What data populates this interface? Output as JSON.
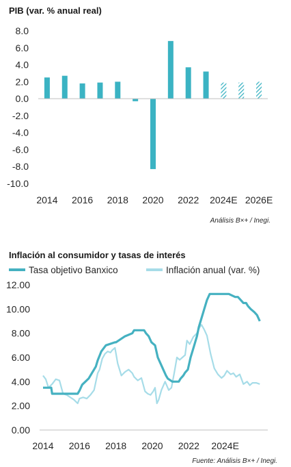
{
  "colors": {
    "bar": "#3BB3C3",
    "rate_line": "#45B1C1",
    "inflation_line": "#A6DCE8",
    "axis": "#BFBFBF",
    "text": "#262626"
  },
  "chart_data": [
    {
      "type": "bar",
      "title": "PIB (var. % anual real)",
      "source": "Análisis B×+ / Inegi.",
      "categories": [
        "2014",
        "2015",
        "2016",
        "2017",
        "2018",
        "2019",
        "2020",
        "2021",
        "2022",
        "2023",
        "2024E",
        "2025E",
        "2026E"
      ],
      "x_tick_labels": [
        "2014",
        "2016",
        "2018",
        "2020",
        "2022",
        "2024E",
        "2026E"
      ],
      "values": [
        2.5,
        2.7,
        1.8,
        1.9,
        2.0,
        -0.3,
        -8.3,
        6.8,
        3.7,
        3.2,
        1.9,
        1.9,
        2.0
      ],
      "hatched": [
        false,
        false,
        false,
        false,
        false,
        false,
        false,
        false,
        false,
        false,
        true,
        true,
        true
      ],
      "ylim": [
        -10,
        8
      ],
      "y_tick_labels": [
        "8.0",
        "6.0",
        "4.0",
        "2.0",
        "0.0",
        "-2.0",
        "-4.0",
        "-6.0",
        "-8.0",
        "-10.0"
      ],
      "y_ticks": [
        8,
        6,
        4,
        2,
        0,
        -2,
        -4,
        -6,
        -8,
        -10
      ],
      "grid": false
    },
    {
      "type": "line",
      "title": "Inflación al consumidor y tasas de interés",
      "source": "Fuente: Análisis B×+ / Inegi.",
      "xlim": [
        2014.0,
        2026.0
      ],
      "x_tick_labels": [
        "2014",
        "2016",
        "2018",
        "2020",
        "2022",
        "2024E"
      ],
      "x_ticks": [
        2014,
        2016,
        2018,
        2020,
        2022,
        2024
      ],
      "ylim": [
        0,
        12
      ],
      "y_tick_labels": [
        "12.00",
        "10.00",
        "8.00",
        "6.00",
        "4.00",
        "2.00",
        "0.00"
      ],
      "y_ticks": [
        12,
        10,
        8,
        6,
        4,
        2,
        0
      ],
      "legend_position": "top",
      "grid": false,
      "series": [
        {
          "name": "Tasa objetivo Banxico",
          "x": [
            2014.0,
            2014.45,
            2014.5,
            2015.9,
            2016.0,
            2016.15,
            2016.5,
            2016.9,
            2017.0,
            2017.2,
            2017.45,
            2017.95,
            2018.0,
            2018.5,
            2018.9,
            2019.0,
            2019.55,
            2019.65,
            2019.8,
            2019.95,
            2020.15,
            2020.3,
            2020.45,
            2020.6,
            2020.75,
            2020.85,
            2021.1,
            2021.45,
            2021.55,
            2021.7,
            2021.8,
            2021.95,
            2022.1,
            2022.25,
            2022.45,
            2022.55,
            2022.7,
            2022.85,
            2023.0,
            2023.15,
            2024.2,
            2024.55,
            2024.7,
            2024.85,
            2025.0,
            2025.15,
            2025.25,
            2025.4,
            2025.6,
            2025.75,
            2025.9
          ],
          "y": [
            3.5,
            3.5,
            3.0,
            3.0,
            3.25,
            3.75,
            4.25,
            5.25,
            5.75,
            6.5,
            7.0,
            7.25,
            7.25,
            7.75,
            8.0,
            8.25,
            8.25,
            8.0,
            7.75,
            7.25,
            7.0,
            6.0,
            5.5,
            5.0,
            4.5,
            4.25,
            4.0,
            4.0,
            4.25,
            4.5,
            4.75,
            5.0,
            6.0,
            6.75,
            7.75,
            8.5,
            9.25,
            10.0,
            10.75,
            11.25,
            11.25,
            11.0,
            11.0,
            10.75,
            10.5,
            10.5,
            10.25,
            10.0,
            9.75,
            9.5,
            9.0
          ]
        },
        {
          "name": "Inflación anual (var. %)",
          "x": [
            2014.0,
            2014.15,
            2014.3,
            2014.5,
            2014.7,
            2014.9,
            2015.1,
            2015.3,
            2015.5,
            2015.7,
            2015.9,
            2016.0,
            2016.2,
            2016.4,
            2016.6,
            2016.8,
            2017.0,
            2017.1,
            2017.25,
            2017.4,
            2017.55,
            2017.7,
            2017.8,
            2017.95,
            2018.1,
            2018.3,
            2018.5,
            2018.7,
            2018.9,
            2019.0,
            2019.2,
            2019.4,
            2019.6,
            2019.75,
            2019.9,
            2020.05,
            2020.15,
            2020.25,
            2020.35,
            2020.5,
            2020.7,
            2020.9,
            2021.05,
            2021.2,
            2021.35,
            2021.5,
            2021.65,
            2021.8,
            2021.9,
            2022.05,
            2022.25,
            2022.45,
            2022.6,
            2022.7,
            2022.85,
            2023.0,
            2023.2,
            2023.4,
            2023.6,
            2023.8,
            2023.95,
            2024.1,
            2024.3,
            2024.45,
            2024.6,
            2024.8,
            2025.0,
            2025.2,
            2025.35,
            2025.5,
            2025.7,
            2025.9
          ],
          "y": [
            4.5,
            4.2,
            3.5,
            3.8,
            4.2,
            4.1,
            3.0,
            2.9,
            2.7,
            2.5,
            2.2,
            2.6,
            2.7,
            2.6,
            2.9,
            3.3,
            4.7,
            5.0,
            5.9,
            6.3,
            6.5,
            6.4,
            6.6,
            6.8,
            5.5,
            4.5,
            4.8,
            5.0,
            4.7,
            4.4,
            4.1,
            4.3,
            3.2,
            3.0,
            2.9,
            3.2,
            3.5,
            2.2,
            2.5,
            3.3,
            4.0,
            3.3,
            3.5,
            4.7,
            6.0,
            5.8,
            6.0,
            6.2,
            7.4,
            7.1,
            7.7,
            8.0,
            8.5,
            8.7,
            8.3,
            7.8,
            6.3,
            5.1,
            4.6,
            4.3,
            4.5,
            4.9,
            4.6,
            4.7,
            4.4,
            4.6,
            3.8,
            4.0,
            3.7,
            3.9,
            3.9,
            3.8
          ]
        }
      ]
    }
  ]
}
